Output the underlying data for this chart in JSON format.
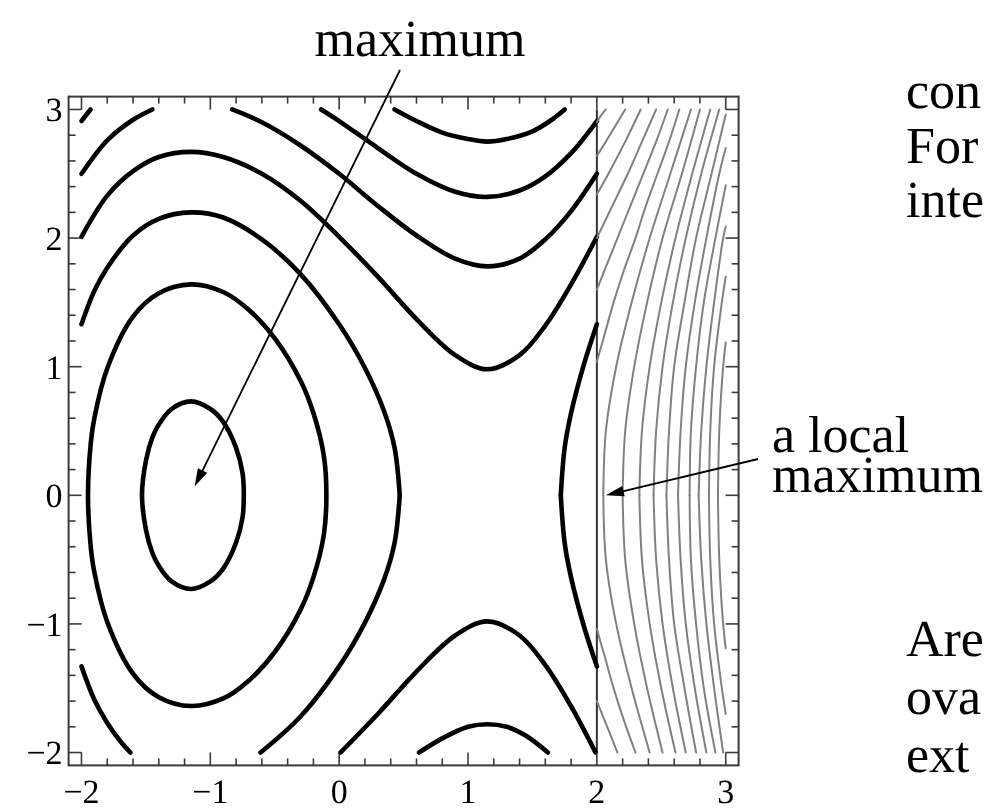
{
  "chart_data": {
    "type": "line",
    "xlim": [
      -2.1,
      3.1
    ],
    "ylim": [
      -2.1,
      3.1
    ],
    "xticks": [
      -2,
      {
        "value": -1.8,
        "label": null
      },
      {
        "value": -1.6,
        "label": null
      },
      {
        "value": -1.4,
        "label": null
      },
      {
        "value": -1.2,
        "label": null
      },
      -1,
      {
        "value": -0.8,
        "label": null
      },
      {
        "value": -0.6,
        "label": null
      },
      {
        "value": -0.4,
        "label": null
      },
      {
        "value": -0.2,
        "label": null
      },
      0,
      {
        "value": 0.2,
        "label": null
      },
      {
        "value": 0.4,
        "label": null
      },
      {
        "value": 0.6,
        "label": null
      },
      {
        "value": 0.8,
        "label": null
      },
      1,
      {
        "value": 1.2,
        "label": null
      },
      {
        "value": 1.4,
        "label": null
      },
      {
        "value": 1.6,
        "label": null
      },
      {
        "value": 1.8,
        "label": null
      },
      2,
      {
        "value": 2.2,
        "label": null
      },
      {
        "value": 2.4,
        "label": null
      },
      {
        "value": 2.6,
        "label": null
      },
      {
        "value": 2.8,
        "label": null
      },
      3
    ],
    "yticks": [
      -2,
      {
        "value": -1.8,
        "label": null
      },
      {
        "value": -1.6,
        "label": null
      },
      {
        "value": -1.4,
        "label": null
      },
      {
        "value": -1.2,
        "label": null
      },
      -1,
      {
        "value": -0.8,
        "label": null
      },
      {
        "value": -0.6,
        "label": null
      },
      {
        "value": -0.4,
        "label": null
      },
      {
        "value": -0.2,
        "label": null
      },
      0,
      {
        "value": 0.2,
        "label": null
      },
      {
        "value": 0.4,
        "label": null
      },
      {
        "value": 0.6,
        "label": null
      },
      {
        "value": 0.8,
        "label": null
      },
      1,
      {
        "value": 1.2,
        "label": null
      },
      {
        "value": 1.4,
        "label": null
      },
      {
        "value": 1.6,
        "label": null
      },
      {
        "value": 1.8,
        "label": null
      },
      2,
      {
        "value": 2.2,
        "label": null
      },
      {
        "value": 2.4,
        "label": null
      },
      {
        "value": 2.6,
        "label": null
      },
      {
        "value": 2.8,
        "label": null
      },
      3
    ],
    "series": [
      {
        "color": "#000000",
        "x": [
          -2,
          -1.9,
          -1.8,
          -1.6,
          -1.4,
          -1.15,
          -0.9,
          -0.6,
          -0.3,
          0,
          0.2,
          0.35,
          0.43,
          0.47
        ],
        "values": [
          1.33,
          1.59,
          1.77,
          2.02,
          2.15,
          2.2,
          2.16,
          1.99,
          1.72,
          1.33,
          0.99,
          0.65,
          0.37,
          0
        ]
      },
      {
        "color": "#000000",
        "x": [
          -0.61,
          -0.3,
          0,
          0.2,
          0.35,
          0.43,
          0.47
        ],
        "values": [
          -2,
          -1.72,
          -1.33,
          -0.99,
          -0.65,
          -0.37,
          0
        ]
      },
      {
        "color": "#000000",
        "x": [
          -2,
          -1.9,
          -1.8,
          -1.7,
          -1.62
        ],
        "values": [
          -1.33,
          -1.59,
          -1.77,
          -1.91,
          -2
        ]
      },
      {
        "color": "#000000",
        "x": [
          1.72,
          1.75,
          1.8,
          1.9,
          2
        ],
        "values": [
          0,
          0.37,
          0.64,
          1.02,
          1.33
        ]
      },
      {
        "color": "#000000",
        "x": [
          1.72,
          1.75,
          1.8,
          1.9,
          2
        ],
        "values": [
          0,
          -0.37,
          -0.64,
          -1.02,
          -1.33
        ]
      },
      {
        "color": "#000000",
        "x": [
          -2,
          -1.8,
          -1.6,
          -1.4,
          -1.15,
          -0.9,
          -0.6,
          -0.3,
          0,
          0.3,
          0.6,
          0.9,
          1.15,
          1.4,
          1.6,
          1.8,
          2
        ],
        "values": [
          2.01,
          2.33,
          2.52,
          2.63,
          2.67,
          2.63,
          2.5,
          2.29,
          2.01,
          1.7,
          1.37,
          1.09,
          0.98,
          1.09,
          1.32,
          1.64,
          2.01
        ]
      },
      {
        "color": "#000000",
        "x": [
          0.01,
          0.3,
          0.6,
          0.9,
          1.15,
          1.4,
          1.6,
          1.8,
          1.99
        ],
        "values": [
          -2,
          -1.7,
          -1.37,
          -1.09,
          -0.98,
          -1.09,
          -1.32,
          -1.64,
          -2
        ]
      },
      {
        "color": "#000000",
        "x": [
          -2,
          -1.8,
          -1.6,
          -1.45
        ],
        "values": [
          2.5,
          2.76,
          2.92,
          3
        ]
      },
      {
        "color": "#000000",
        "x": [
          -0.83,
          -0.6,
          -0.3,
          0,
          0.3,
          0.6,
          0.9,
          1.15,
          1.4,
          1.6,
          1.8,
          2
        ],
        "values": [
          3,
          2.9,
          2.72,
          2.5,
          2.25,
          2.02,
          1.84,
          1.78,
          1.84,
          1.99,
          2.21,
          2.5
        ]
      },
      {
        "color": "#000000",
        "x": [
          0.62,
          0.8,
          1.0,
          1.15,
          1.3,
          1.45,
          1.62
        ],
        "values": [
          -2,
          -1.89,
          -1.8,
          -1.78,
          -1.8,
          -1.87,
          -2
        ]
      },
      {
        "color": "#000000",
        "x": [
          -2,
          -1.93
        ],
        "values": [
          2.91,
          3
        ]
      },
      {
        "color": "#000000",
        "x": [
          -0.14,
          0,
          0.3,
          0.6,
          0.9,
          1.15,
          1.4,
          1.6,
          1.8,
          2
        ],
        "values": [
          3,
          2.91,
          2.7,
          2.5,
          2.36,
          2.32,
          2.37,
          2.48,
          2.66,
          2.91
        ]
      },
      {
        "color": "#000000",
        "x": [
          0.43,
          0.6,
          0.8,
          1.0,
          1.15,
          1.3,
          1.5,
          1.65,
          1.75
        ],
        "values": [
          3,
          2.91,
          2.82,
          2.77,
          2.75,
          2.77,
          2.83,
          2.92,
          3
        ]
      },
      {
        "color": "#808080",
        "x": [
          2,
          2.07,
          2.16,
          2.22
        ],
        "values": [
          2.64,
          2.75,
          2.9,
          3
        ]
      },
      {
        "color": "#808080",
        "x": [
          2,
          2.09,
          2.22,
          2.34
        ],
        "values": [
          2.34,
          2.5,
          2.75,
          3
        ]
      },
      {
        "color": "#808080",
        "x": [
          2,
          2.12,
          2.24,
          2.35,
          2.46
        ],
        "values": [
          2,
          2.25,
          2.5,
          2.75,
          3
        ]
      },
      {
        "color": "#808080",
        "x": [
          2,
          2.06,
          2.16,
          2.26,
          2.36,
          2.46,
          2.55
        ],
        "values": [
          1.6,
          1.75,
          2,
          2.25,
          2.5,
          2.75,
          3
        ]
      },
      {
        "color": "#808080",
        "x": [
          2,
          2.06,
          2.16
        ],
        "values": [
          -1.6,
          -1.75,
          -2
        ]
      },
      {
        "color": "#808080",
        "x": [
          2,
          2.06,
          2.13,
          2.21,
          2.3,
          2.38,
          2.47,
          2.56,
          2.64
        ],
        "values": [
          1.04,
          1.25,
          1.5,
          1.75,
          2,
          2.25,
          2.5,
          2.75,
          3
        ]
      },
      {
        "color": "#808080",
        "x": [
          2,
          2.06,
          2.13,
          2.21,
          2.3
        ],
        "values": [
          -1.04,
          -1.25,
          -1.5,
          -1.75,
          -2
        ]
      },
      {
        "color": "#808080",
        "x": [
          2.05,
          2.07,
          2.15,
          2.27,
          2.41
        ],
        "values": [
          0,
          -0.5,
          -1,
          -1.5,
          -2
        ]
      },
      {
        "color": "#808080",
        "x": [
          2.05,
          2.07,
          2.15,
          2.27,
          2.41,
          2.57,
          2.73
        ],
        "values": [
          0,
          0.5,
          1,
          1.5,
          2,
          2.5,
          3
        ]
      },
      {
        "color": "#808080",
        "x": [
          2.2,
          2.22,
          2.29,
          2.39,
          2.51
        ],
        "values": [
          0,
          -0.5,
          -1,
          -1.5,
          -2
        ]
      },
      {
        "color": "#808080",
        "x": [
          2.2,
          2.22,
          2.29,
          2.39,
          2.51,
          2.66,
          2.8
        ],
        "values": [
          0,
          0.5,
          1,
          1.5,
          2,
          2.5,
          3
        ]
      },
      {
        "color": "#808080",
        "x": [
          2.33,
          2.35,
          2.41,
          2.5,
          2.61
        ],
        "values": [
          0,
          -0.5,
          -1,
          -1.5,
          -2
        ]
      },
      {
        "color": "#808080",
        "x": [
          2.33,
          2.35,
          2.41,
          2.5,
          2.61,
          2.74,
          2.88
        ],
        "values": [
          0,
          0.5,
          1,
          1.5,
          2,
          2.5,
          3
        ]
      },
      {
        "color": "#808080",
        "x": [
          2.44,
          2.46,
          2.51,
          2.59,
          2.69
        ],
        "values": [
          0,
          -0.5,
          -1,
          -1.5,
          -2
        ]
      },
      {
        "color": "#808080",
        "x": [
          2.44,
          2.46,
          2.51,
          2.59,
          2.69,
          2.81,
          2.95
        ],
        "values": [
          0,
          0.5,
          1,
          1.5,
          2,
          2.5,
          3
        ]
      },
      {
        "color": "#808080",
        "x": [
          2.54,
          2.56,
          2.6,
          2.68,
          2.77
        ],
        "values": [
          0,
          -0.5,
          -1,
          -1.5,
          -2
        ]
      },
      {
        "color": "#808080",
        "x": [
          2.54,
          2.56,
          2.6,
          2.68,
          2.77,
          2.89,
          3
        ],
        "values": [
          0,
          0.5,
          1,
          1.5,
          2,
          2.5,
          2.96
        ]
      },
      {
        "color": "#808080",
        "x": [
          2.63,
          2.65,
          2.69,
          2.76,
          2.85
        ],
        "values": [
          0,
          -0.5,
          -1,
          -1.5,
          -2
        ]
      },
      {
        "color": "#808080",
        "x": [
          2.63,
          2.65,
          2.69,
          2.76,
          2.85,
          2.95,
          3
        ],
        "values": [
          0,
          0.5,
          1,
          1.5,
          2,
          2.5,
          2.7
        ]
      },
      {
        "color": "#808080",
        "x": [
          2.72,
          2.73,
          2.77,
          2.83,
          2.92
        ],
        "values": [
          0,
          -0.5,
          -1,
          -1.5,
          -2
        ]
      },
      {
        "color": "#808080",
        "x": [
          2.72,
          2.73,
          2.77,
          2.83,
          2.92,
          3
        ],
        "values": [
          0,
          0.5,
          1,
          1.5,
          2,
          2.41
        ]
      },
      {
        "color": "#808080",
        "x": [
          2.79,
          2.81,
          2.85,
          2.91,
          2.98
        ],
        "values": [
          0,
          -0.5,
          -1,
          -1.5,
          -2
        ]
      },
      {
        "color": "#808080",
        "x": [
          2.79,
          2.81,
          2.85,
          2.91,
          2.98,
          3
        ],
        "values": [
          0,
          0.5,
          1,
          1.5,
          2,
          2.09
        ]
      },
      {
        "color": "#808080",
        "x": [
          2.87,
          2.88,
          2.91,
          2.97,
          3
        ],
        "values": [
          0,
          -0.5,
          -1,
          -1.5,
          -1.7
        ]
      },
      {
        "color": "#808080",
        "x": [
          2.87,
          2.88,
          2.91,
          2.97,
          3
        ],
        "values": [
          0,
          0.5,
          1,
          1.5,
          1.7
        ]
      },
      {
        "color": "#808080",
        "x": [
          2.94,
          2.95,
          2.98,
          3
        ],
        "values": [
          0,
          -0.5,
          -1,
          -1.19
        ]
      },
      {
        "color": "#808080",
        "x": [
          2.94,
          2.95,
          2.98,
          3
        ],
        "values": [
          0,
          0.5,
          1,
          1.19
        ]
      },
      {
        "color": "#808080",
        "x": [
          2,
          2.03,
          2.07
        ],
        "values": [
          2.9,
          2.95,
          3
        ]
      }
    ],
    "ref_lines": [
      {
        "axis": "x",
        "value": 2,
        "color": "#333333"
      }
    ],
    "annotations": [
      "maximum",
      {
        "text": "a local maximum",
        "x": 2.07,
        "y": 0
      },
      "con\nFor\ninte",
      "Are\nova\next"
    ]
  }
}
